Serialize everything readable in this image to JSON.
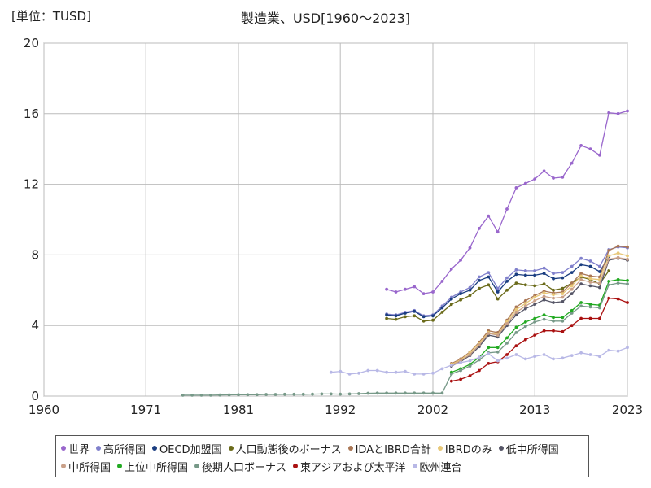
{
  "header": {
    "unit": "[単位：TUSD]",
    "title": "製造業、USD[1960～2023]"
  },
  "chart_data": {
    "type": "line",
    "title": "製造業、USD[1960～2023]",
    "ylabel": "[単位：TUSD]",
    "xlabel": "",
    "xlim": [
      1960,
      2023
    ],
    "ylim": [
      0,
      20
    ],
    "x_ticks": [
      "1960",
      "1971",
      "1981",
      "1992",
      "2002",
      "2013",
      "2023"
    ],
    "y_ticks": [
      "0",
      "4",
      "8",
      "12",
      "16",
      "20"
    ],
    "grid": true,
    "legend_position": "bottom",
    "series": [
      {
        "name": "世界",
        "color": "#9966cc",
        "start": 1997,
        "values": [
          6.05,
          5.9,
          6.05,
          6.2,
          5.8,
          5.9,
          6.5,
          7.2,
          7.7,
          8.4,
          9.5,
          10.2,
          9.3,
          10.6,
          11.8,
          12.05,
          12.3,
          12.75,
          12.35,
          12.4,
          13.2,
          14.2,
          14.0,
          13.65,
          16.05,
          16.0,
          16.15
        ]
      },
      {
        "name": "高所得国",
        "color": "#8080cc",
        "start": 1997,
        "values": [
          4.65,
          4.6,
          4.75,
          4.85,
          4.55,
          4.6,
          5.1,
          5.6,
          5.9,
          6.15,
          6.75,
          7.0,
          6.1,
          6.7,
          7.15,
          7.1,
          7.1,
          7.25,
          6.95,
          7.0,
          7.35,
          7.8,
          7.65,
          7.35,
          8.3,
          8.45,
          8.4
        ]
      },
      {
        "name": "OECD加盟国",
        "color": "#1a3d80",
        "start": 1997,
        "values": [
          4.6,
          4.55,
          4.7,
          4.8,
          4.5,
          4.55,
          5.0,
          5.5,
          5.8,
          6.0,
          6.55,
          6.75,
          5.9,
          6.5,
          6.9,
          6.85,
          6.85,
          6.95,
          6.65,
          6.7,
          7.0,
          7.45,
          7.35,
          7.05,
          7.9
        ]
      },
      {
        "name": "人口動態後のボーナス",
        "color": "#6b6b1a",
        "start": 1997,
        "values": [
          4.4,
          4.35,
          4.5,
          4.55,
          4.25,
          4.3,
          4.75,
          5.2,
          5.45,
          5.7,
          6.1,
          6.3,
          5.5,
          6.0,
          6.4,
          6.3,
          6.25,
          6.35,
          6.0,
          6.1,
          6.4,
          6.75,
          6.6,
          6.35,
          7.1
        ]
      },
      {
        "name": "IDAとIBRD合計",
        "color": "#aa7755",
        "start": 2004,
        "values": [
          1.85,
          2.1,
          2.5,
          3.05,
          3.7,
          3.6,
          4.3,
          5.05,
          5.4,
          5.7,
          5.95,
          5.85,
          5.9,
          6.4,
          6.95,
          6.8,
          6.75,
          8.25,
          8.5,
          8.45
        ]
      },
      {
        "name": "IBRDのみ",
        "color": "#e8c878",
        "start": 2004,
        "values": [
          1.8,
          2.05,
          2.45,
          3.0,
          3.6,
          3.5,
          4.2,
          4.9,
          5.25,
          5.6,
          5.85,
          5.75,
          5.8,
          6.25,
          6.8,
          6.65,
          6.6,
          7.95,
          8.1,
          7.95
        ]
      },
      {
        "name": "低中所得国",
        "color": "#555566",
        "start": 2004,
        "values": [
          1.7,
          1.95,
          2.3,
          2.8,
          3.45,
          3.35,
          4.0,
          4.6,
          4.95,
          5.2,
          5.45,
          5.3,
          5.35,
          5.8,
          6.35,
          6.25,
          6.15,
          7.7,
          7.8,
          7.7
        ]
      },
      {
        "name": "中所得国",
        "color": "#c9a088",
        "start": 2004,
        "values": [
          1.75,
          2.0,
          2.35,
          2.9,
          3.55,
          3.45,
          4.1,
          4.75,
          5.1,
          5.4,
          5.65,
          5.55,
          5.6,
          6.05,
          6.6,
          6.45,
          6.4,
          7.75,
          7.85,
          7.75
        ]
      },
      {
        "name": "上位中所得国",
        "color": "#22aa22",
        "start": 2004,
        "values": [
          1.35,
          1.55,
          1.8,
          2.2,
          2.75,
          2.75,
          3.3,
          3.9,
          4.2,
          4.4,
          4.6,
          4.45,
          4.45,
          4.85,
          5.3,
          5.2,
          5.15,
          6.5,
          6.6,
          6.55
        ]
      },
      {
        "name": "後期人口ボーナス",
        "color": "#779988",
        "start": 1975,
        "values": [
          0.05,
          0.05,
          0.05,
          0.05,
          0.06,
          0.07,
          0.08,
          0.08,
          0.08,
          0.09,
          0.09,
          0.1,
          0.1,
          0.1,
          0.11,
          0.12,
          0.12,
          0.11,
          0.12,
          0.14,
          0.16,
          0.17,
          0.17,
          0.17,
          0.17,
          0.17,
          0.17,
          0.17,
          0.17,
          1.25,
          1.45,
          1.7,
          2.05,
          2.45,
          2.5,
          3.0,
          3.6,
          3.95,
          4.2,
          4.35,
          4.25,
          4.25,
          4.7,
          5.1,
          5.05,
          5.0,
          6.3,
          6.4,
          6.35
        ]
      },
      {
        "name": "東アジアおよび太平洋",
        "color": "#aa1111",
        "start": 2004,
        "values": [
          0.85,
          0.95,
          1.15,
          1.45,
          1.85,
          1.95,
          2.35,
          2.85,
          3.2,
          3.45,
          3.7,
          3.7,
          3.65,
          4.0,
          4.4,
          4.4,
          4.4,
          5.55,
          5.5,
          5.3
        ]
      },
      {
        "name": "欧州連合",
        "color": "#b8b8e6",
        "start": 1991,
        "values": [
          1.35,
          1.4,
          1.25,
          1.3,
          1.45,
          1.45,
          1.35,
          1.35,
          1.4,
          1.25,
          1.25,
          1.3,
          1.55,
          1.75,
          1.9,
          2.0,
          2.2,
          2.4,
          2.0,
          2.15,
          2.35,
          2.1,
          2.25,
          2.35,
          2.1,
          2.15,
          2.3,
          2.45,
          2.35,
          2.25,
          2.6,
          2.55,
          2.75
        ]
      }
    ]
  }
}
